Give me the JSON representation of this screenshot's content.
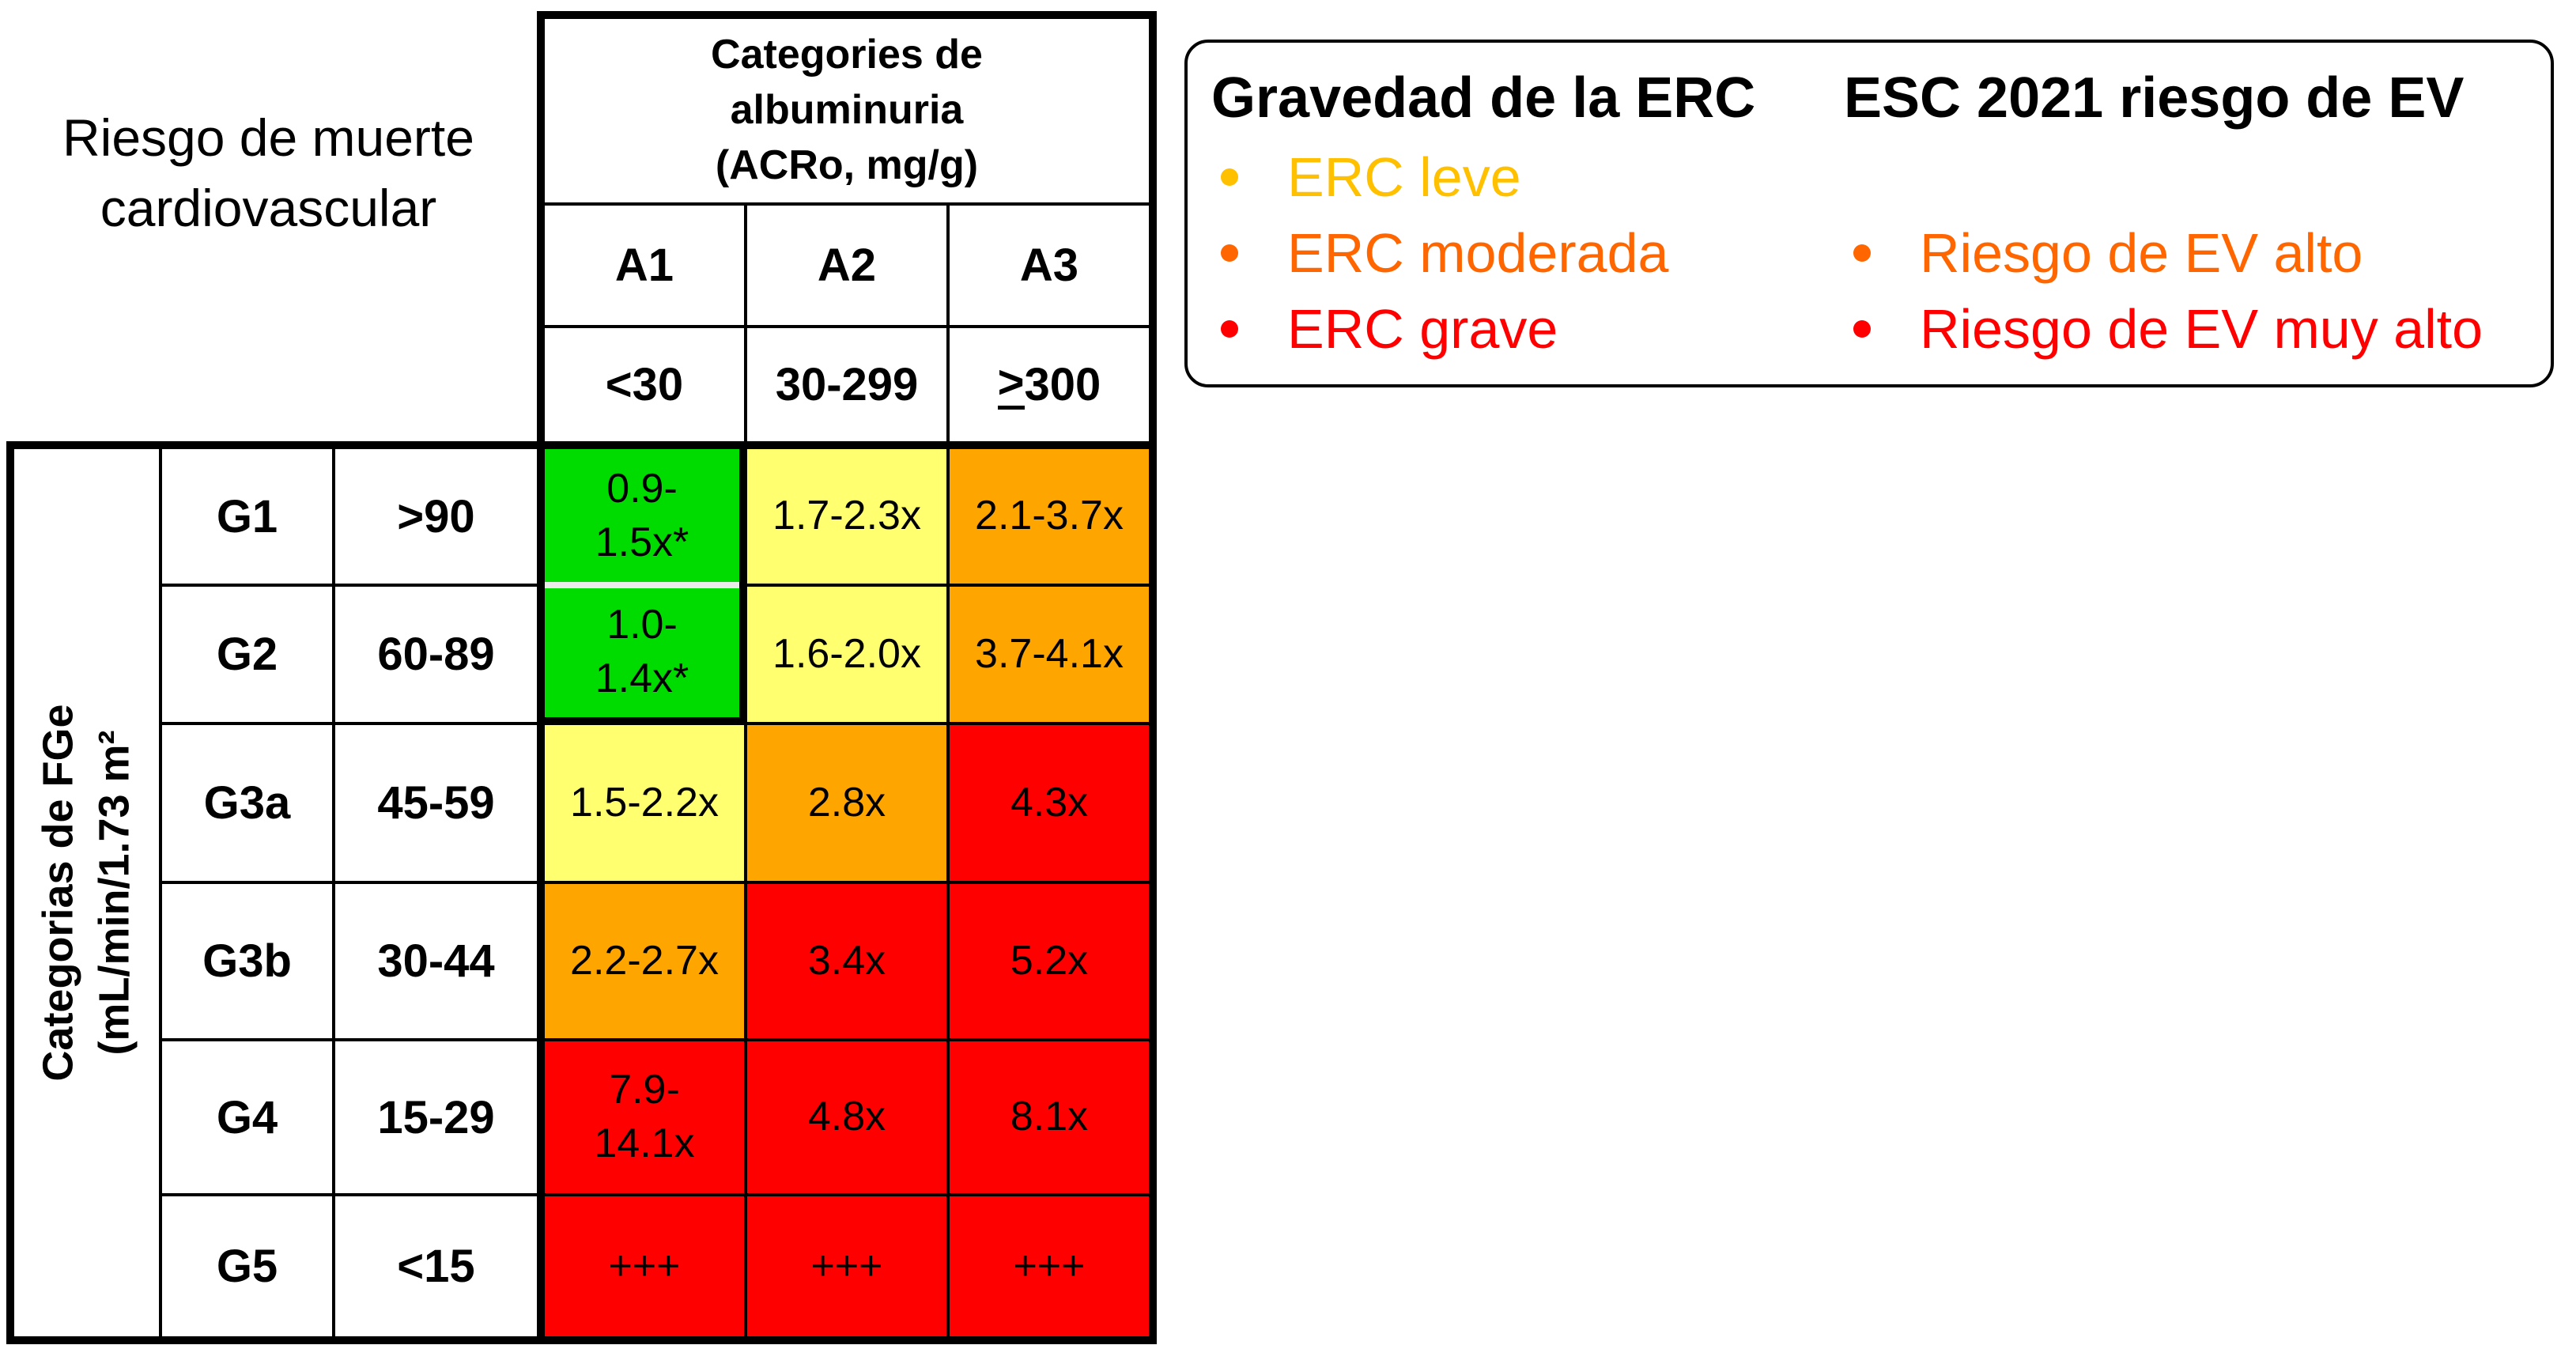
{
  "palette": {
    "green": "#00dc00",
    "yellow": "#ffff70",
    "orange": "#ffa500",
    "red": "#ff0000"
  },
  "chart_data": {
    "type": "heatmap",
    "title": "Riesgo de muerte\ncardiovascular",
    "col_axis": {
      "group_title": "Categories de\nalbuminuria\n(ACRo, mg/g)",
      "categories": [
        "A1",
        "A2",
        "A3"
      ],
      "thresholds": [
        "<30",
        "30-299"
      ],
      "threshold_a3": {
        "sym": ">",
        "num": "300"
      }
    },
    "row_axis": {
      "title": "Categorias de FGe\n(mL/min/1.73 m²"
    },
    "rows": [
      {
        "g": "G1",
        "range": ">90",
        "cells": [
          {
            "text": "0.9-\n1.5x*",
            "level": "green"
          },
          {
            "text": "1.7-2.3x",
            "level": "yellow"
          },
          {
            "text": "2.1-3.7x",
            "level": "orange"
          }
        ]
      },
      {
        "g": "G2",
        "range": "60-89",
        "cells": [
          {
            "text": "1.0-\n1.4x*",
            "level": "green"
          },
          {
            "text": "1.6-2.0x",
            "level": "yellow"
          },
          {
            "text": "3.7-4.1x",
            "level": "orange"
          }
        ]
      },
      {
        "g": "G3a",
        "range": "45-59",
        "cells": [
          {
            "text": "1.5-2.2x",
            "level": "yellow"
          },
          {
            "text": "2.8x",
            "level": "orange"
          },
          {
            "text": "4.3x",
            "level": "red"
          }
        ]
      },
      {
        "g": "G3b",
        "range": "30-44",
        "cells": [
          {
            "text": "2.2-2.7x",
            "level": "orange"
          },
          {
            "text": "3.4x",
            "level": "red"
          },
          {
            "text": "5.2x",
            "level": "red"
          }
        ]
      },
      {
        "g": "G4",
        "range": "15-29",
        "cells": [
          {
            "text": "7.9-\n14.1x",
            "level": "red"
          },
          {
            "text": "4.8x",
            "level": "red"
          },
          {
            "text": "8.1x",
            "level": "red"
          }
        ]
      },
      {
        "g": "G5",
        "range": "<15",
        "cells": [
          {
            "text": "+++",
            "level": "red"
          },
          {
            "text": "+++",
            "level": "red"
          },
          {
            "text": "+++",
            "level": "red"
          }
        ]
      }
    ]
  },
  "legend": {
    "erc": {
      "title": "Gravedad de la ERC",
      "items": [
        {
          "label": "ERC leve",
          "color": "#ffc000"
        },
        {
          "label": "ERC moderada",
          "color": "#ff6600"
        },
        {
          "label": "ERC grave",
          "color": "#ff0000"
        }
      ]
    },
    "esc": {
      "title": "ESC 2021 riesgo de EV",
      "items": [
        {
          "label": "Riesgo de EV alto",
          "color": "#ff6600"
        },
        {
          "label": "Riesgo de EV muy alto",
          "color": "#ff0000"
        }
      ]
    }
  }
}
